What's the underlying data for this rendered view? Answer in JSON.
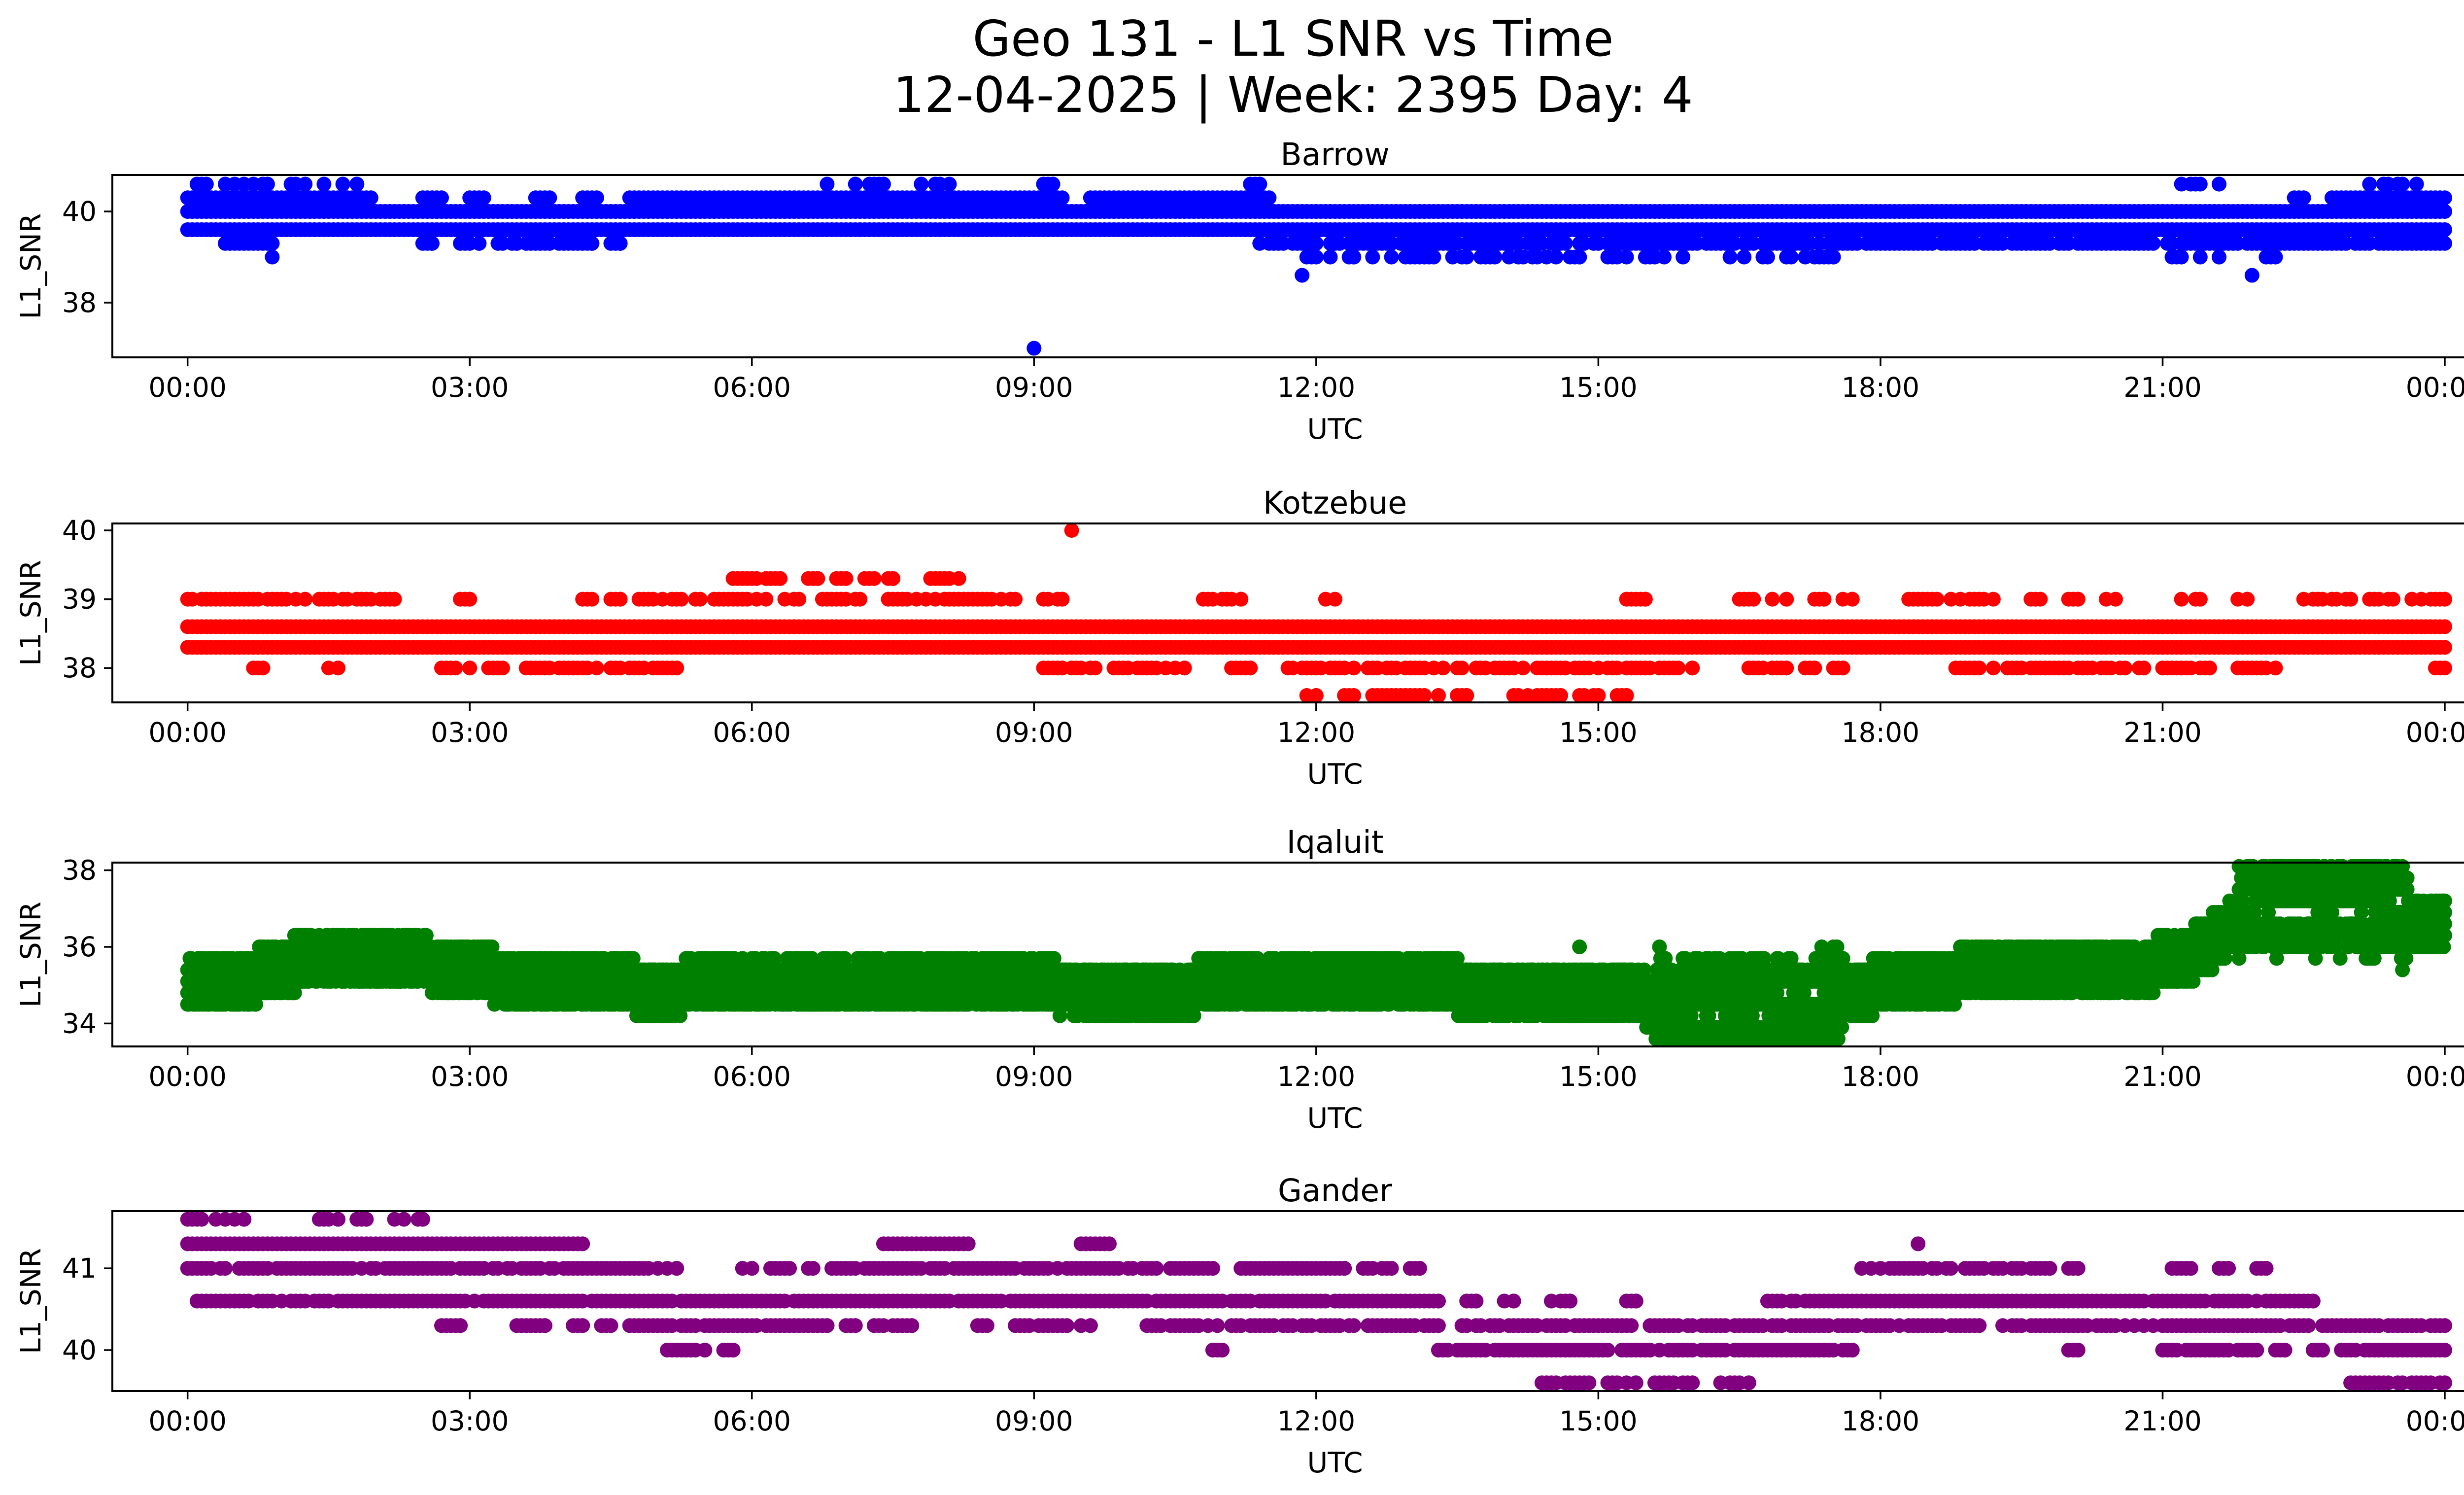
{
  "figure": {
    "title_line1": "Geo 131 - L1 SNR vs Time",
    "title_line2": "12-04-2025 | Week: 2395 Day: 4"
  },
  "chart_data": [
    {
      "type": "scatter",
      "title": "Barrow",
      "xlabel": "UTC",
      "ylabel": "L1_SNR",
      "color": "#0000ff",
      "x_unit": "hours UTC",
      "xlim": [
        -0.8,
        25.2
      ],
      "ylim": [
        36.8,
        40.8
      ],
      "xticks": [
        0,
        3,
        6,
        9,
        12,
        15,
        18,
        21,
        24
      ],
      "xtick_labels": [
        "00:00",
        "03:00",
        "06:00",
        "09:00",
        "12:00",
        "15:00",
        "18:00",
        "21:00",
        "00:00"
      ],
      "yticks": [
        38,
        40
      ],
      "ytick_labels": [
        "38",
        "40"
      ],
      "bands": [
        {
          "y": 40.3,
          "segments": [
            [
              0.0,
              1.95
            ],
            [
              2.5,
              2.7
            ],
            [
              3.0,
              3.15
            ],
            [
              3.7,
              3.85
            ],
            [
              4.2,
              4.35
            ],
            [
              4.7,
              9.3
            ],
            [
              9.6,
              11.5
            ],
            [
              22.4,
              22.5
            ],
            [
              22.8,
              24.0
            ]
          ],
          "density": 1.0
        },
        {
          "y": 40.0,
          "segments": [
            [
              0.0,
              24.0
            ]
          ],
          "density": 1.0
        },
        {
          "y": 39.6,
          "segments": [
            [
              0.0,
              24.0
            ]
          ],
          "density": 1.0
        },
        {
          "y": 39.3,
          "segments": [
            [
              0.4,
              0.9
            ],
            [
              2.5,
              2.6
            ],
            [
              2.9,
              3.1
            ],
            [
              3.3,
              3.5
            ],
            [
              3.6,
              4.3
            ],
            [
              4.5,
              4.6
            ],
            [
              11.4,
              24.0
            ]
          ],
          "density": 0.9
        },
        {
          "y": 39.0,
          "segments": [
            [
              11.9,
              12.4
            ],
            [
              12.6,
              14.8
            ],
            [
              15.1,
              15.3
            ],
            [
              15.5,
              15.9
            ],
            [
              16.4,
              16.8
            ],
            [
              17.0,
              17.5
            ],
            [
              21.1,
              21.2
            ],
            [
              21.4,
              21.6
            ],
            [
              22.1,
              22.2
            ]
          ],
          "density": 0.6
        },
        {
          "y": 40.6,
          "segments": [
            [
              0.1,
              0.2
            ],
            [
              0.4,
              1.8
            ],
            [
              6.8,
              7.4
            ],
            [
              7.8,
              8.1
            ],
            [
              9.1,
              9.2
            ],
            [
              11.3,
              11.4
            ],
            [
              21.2,
              21.6
            ],
            [
              23.2,
              23.7
            ]
          ],
          "density": 0.45
        }
      ],
      "points": [
        [
          0.9,
          39.0
        ],
        [
          11.85,
          38.6
        ],
        [
          21.95,
          38.6
        ],
        [
          9.0,
          37.0
        ]
      ]
    },
    {
      "type": "scatter",
      "title": "Kotzebue",
      "xlabel": "UTC",
      "ylabel": "L1_SNR",
      "color": "#ff0000",
      "x_unit": "hours UTC",
      "xlim": [
        -0.8,
        25.2
      ],
      "ylim": [
        37.5,
        40.1
      ],
      "xticks": [
        0,
        3,
        6,
        9,
        12,
        15,
        18,
        21,
        24
      ],
      "xtick_labels": [
        "00:00",
        "03:00",
        "06:00",
        "09:00",
        "12:00",
        "15:00",
        "18:00",
        "21:00",
        "00:00"
      ],
      "yticks": [
        38,
        39,
        40
      ],
      "ytick_labels": [
        "38",
        "39",
        "40"
      ],
      "bands": [
        {
          "y": 38.6,
          "segments": [
            [
              0.0,
              24.0
            ]
          ],
          "density": 1.0
        },
        {
          "y": 38.3,
          "segments": [
            [
              0.0,
              24.0
            ]
          ],
          "density": 1.0
        },
        {
          "y": 39.0,
          "segments": [
            [
              0.0,
              2.2
            ],
            [
              2.9,
              3.0
            ],
            [
              4.2,
              4.3
            ],
            [
              4.5,
              4.6
            ],
            [
              4.8,
              9.3
            ],
            [
              10.8,
              11.2
            ],
            [
              12.1,
              12.2
            ],
            [
              15.3,
              15.5
            ],
            [
              16.5,
              17.0
            ],
            [
              17.3,
              17.4
            ],
            [
              17.6,
              17.7
            ],
            [
              18.3,
              19.2
            ],
            [
              19.6,
              19.7
            ],
            [
              20.0,
              20.1
            ],
            [
              20.4,
              20.5
            ],
            [
              21.2,
              21.4
            ],
            [
              21.8,
              21.9
            ],
            [
              22.5,
              23.0
            ],
            [
              23.2,
              24.0
            ]
          ],
          "density": 0.7
        },
        {
          "y": 38.0,
          "segments": [
            [
              0.7,
              0.8
            ],
            [
              1.5,
              1.6
            ],
            [
              2.7,
              3.0
            ],
            [
              3.2,
              5.2
            ],
            [
              9.1,
              9.3
            ],
            [
              9.4,
              10.6
            ],
            [
              11.1,
              11.3
            ],
            [
              11.7,
              16.0
            ],
            [
              16.6,
              17.0
            ],
            [
              17.2,
              17.3
            ],
            [
              17.5,
              17.6
            ],
            [
              18.8,
              20.8
            ],
            [
              21.0,
              21.5
            ],
            [
              21.8,
              22.2
            ],
            [
              23.9,
              24.0
            ]
          ],
          "density": 0.75
        },
        {
          "y": 37.6,
          "segments": [
            [
              11.9,
              12.0
            ],
            [
              12.3,
              12.4
            ],
            [
              12.6,
              13.3
            ],
            [
              13.5,
              13.6
            ],
            [
              14.1,
              14.6
            ],
            [
              14.8,
              15.0
            ],
            [
              15.2,
              15.3
            ]
          ],
          "density": 0.85
        },
        {
          "y": 39.3,
          "segments": [
            [
              5.8,
              6.3
            ],
            [
              6.6,
              6.7
            ],
            [
              6.9,
              7.0
            ],
            [
              7.2,
              7.5
            ],
            [
              7.9,
              8.2
            ]
          ],
          "density": 0.85
        }
      ],
      "points": [
        [
          9.4,
          40.0
        ]
      ]
    },
    {
      "type": "scatter",
      "title": "Iqaluit",
      "xlabel": "UTC",
      "ylabel": "L1_SNR",
      "color": "#008000",
      "x_unit": "hours UTC",
      "xlim": [
        -0.8,
        25.2
      ],
      "ylim": [
        33.4,
        38.2
      ],
      "xticks": [
        0,
        3,
        6,
        9,
        12,
        15,
        18,
        21,
        24
      ],
      "xtick_labels": [
        "00:00",
        "03:00",
        "06:00",
        "09:00",
        "12:00",
        "15:00",
        "18:00",
        "21:00",
        "00:00"
      ],
      "yticks": [
        34,
        36,
        38
      ],
      "ytick_labels": [
        "34",
        "36",
        "38"
      ],
      "trend": {
        "x": [
          0,
          0.7,
          1.2,
          2.2,
          3.0,
          3.4,
          4.5,
          5.0,
          6.5,
          8.0,
          9.5,
          12.0,
          15.0,
          15.8,
          16.5,
          17.3,
          18.0,
          19.0,
          20.0,
          20.7,
          21.4,
          22.0,
          22.8,
          23.4,
          23.6,
          24.0
        ],
        "center": [
          35.2,
          35.2,
          35.6,
          35.6,
          35.5,
          35.1,
          35.0,
          34.9,
          35.2,
          35.2,
          34.9,
          35.0,
          34.9,
          34.5,
          34.4,
          34.6,
          35.0,
          35.3,
          35.3,
          35.4,
          35.9,
          37.1,
          37.1,
          37.1,
          36.6,
          36.6
        ],
        "x_step": 0.0125,
        "offsets": [
          -0.6,
          -0.3,
          0.0,
          0.3,
          0.6
        ],
        "scatter": [
          [
            [
              0,
              6.0
            ],
            [
              0.3,
              0.0
            ],
            [
              0.25,
              0.0
            ]
          ],
          [
            [
              15.6,
              17.6
            ],
            [
              0.45,
              0.6
            ],
            [
              0.6,
              0.7
            ]
          ],
          [
            [
              21.8,
              23.6
            ],
            [
              0.0,
              0.75
            ],
            [
              0.25,
              0.9
            ]
          ]
        ]
      },
      "points": [
        [
          16.7,
          33.6
        ],
        [
          17.1,
          33.6
        ],
        [
          14.8,
          36.0
        ],
        [
          1.6,
          36.3
        ],
        [
          22.1,
          38.0
        ],
        [
          22.4,
          38.0
        ],
        [
          22.6,
          38.0
        ],
        [
          22.9,
          38.0
        ]
      ]
    },
    {
      "type": "scatter",
      "title": "Gander",
      "xlabel": "UTC",
      "ylabel": "L1_SNR",
      "color": "#800080",
      "x_unit": "hours UTC",
      "xlim": [
        -0.8,
        25.2
      ],
      "ylim": [
        39.5,
        41.7
      ],
      "xticks": [
        0,
        3,
        6,
        9,
        12,
        15,
        18,
        21,
        24
      ],
      "xtick_labels": [
        "00:00",
        "03:00",
        "06:00",
        "09:00",
        "12:00",
        "15:00",
        "18:00",
        "21:00",
        "00:00"
      ],
      "yticks": [
        40,
        41
      ],
      "ytick_labels": [
        "40",
        "41"
      ],
      "bands": [
        {
          "y": 41.6,
          "segments": [
            [
              0.0,
              0.6
            ],
            [
              1.4,
              1.6
            ],
            [
              1.8,
              1.9
            ],
            [
              2.2,
              2.5
            ]
          ],
          "density": 0.8
        },
        {
          "y": 41.3,
          "segments": [
            [
              0.0,
              4.2
            ],
            [
              7.4,
              8.3
            ],
            [
              9.5,
              9.8
            ]
          ],
          "density": 1.0
        },
        {
          "y": 41.0,
          "segments": [
            [
              0.0,
              5.2
            ],
            [
              5.9,
              6.0
            ],
            [
              6.2,
              10.9
            ],
            [
              11.2,
              12.3
            ],
            [
              12.5,
              12.8
            ],
            [
              13.0,
              13.1
            ],
            [
              17.8,
              19.8
            ],
            [
              20.0,
              20.1
            ],
            [
              21.1,
              21.3
            ],
            [
              21.6,
              21.7
            ],
            [
              22.0,
              22.1
            ]
          ],
          "density": 0.85
        },
        {
          "y": 40.6,
          "segments": [
            [
              0.1,
              1.5
            ],
            [
              1.6,
              13.3
            ],
            [
              13.6,
              13.7
            ],
            [
              14.0,
              14.1
            ],
            [
              14.5,
              14.7
            ],
            [
              15.3,
              15.4
            ],
            [
              16.8,
              22.6
            ]
          ],
          "density": 0.95
        },
        {
          "y": 40.3,
          "segments": [
            [
              2.7,
              2.9
            ],
            [
              3.5,
              3.8
            ],
            [
              4.1,
              4.2
            ],
            [
              4.4,
              4.5
            ],
            [
              4.7,
              6.8
            ],
            [
              7.0,
              7.1
            ],
            [
              7.3,
              7.7
            ],
            [
              8.4,
              8.5
            ],
            [
              8.8,
              9.6
            ],
            [
              10.2,
              24.0
            ]
          ],
          "density": 0.8
        },
        {
          "y": 40.0,
          "segments": [
            [
              5.1,
              5.5
            ],
            [
              5.7,
              5.8
            ],
            [
              10.9,
              11.0
            ],
            [
              13.3,
              17.7
            ],
            [
              20.0,
              20.1
            ],
            [
              21.0,
              21.7
            ],
            [
              21.8,
              22.0
            ],
            [
              22.2,
              22.3
            ],
            [
              22.6,
              22.7
            ],
            [
              22.9,
              24.0
            ]
          ],
          "density": 0.9
        },
        {
          "y": 39.6,
          "segments": [
            [
              14.4,
              14.9
            ],
            [
              15.1,
              15.4
            ],
            [
              15.6,
              16.0
            ],
            [
              16.3,
              16.6
            ],
            [
              23.0,
              24.0
            ]
          ],
          "density": 0.85
        }
      ],
      "points": [
        [
          18.4,
          41.3
        ]
      ]
    }
  ]
}
